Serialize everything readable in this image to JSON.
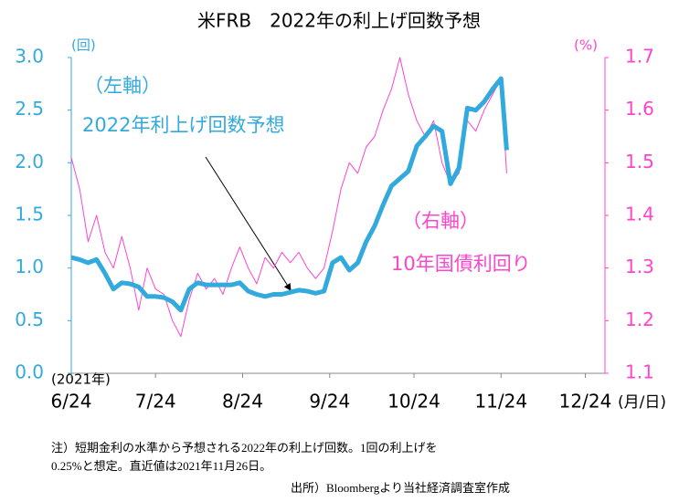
{
  "chart_data": {
    "type": "line",
    "title": "米FRB　2022年の利上げ回数予想",
    "y_label": "(回)",
    "y2_label": "(%)",
    "x_year_label": "(2021年)",
    "x_unit_label": "(月/日)",
    "annotations": [
      "（左軸）",
      "2022年利上げ回数予想",
      "（右軸）",
      "10年国債利回り"
    ],
    "notes": [
      "注）短期金利の水準から予想される2022年の利上げ回数。1回の利上げを",
      "0.25%と想定。直近値は2021年11月26日。"
    ],
    "source": "出所）Bloombergより当社経済調査室作成",
    "x": [
      "2021-06-24",
      "2021-06-27",
      "2021-06-30",
      "2021-07-03",
      "2021-07-06",
      "2021-07-09",
      "2021-07-12",
      "2021-07-15",
      "2021-07-18",
      "2021-07-21",
      "2021-07-24",
      "2021-07-27",
      "2021-07-30",
      "2021-08-02",
      "2021-08-05",
      "2021-08-08",
      "2021-08-11",
      "2021-08-14",
      "2021-08-17",
      "2021-08-20",
      "2021-08-23",
      "2021-08-26",
      "2021-08-29",
      "2021-09-01",
      "2021-09-04",
      "2021-09-07",
      "2021-09-10",
      "2021-09-13",
      "2021-09-16",
      "2021-09-19",
      "2021-09-22",
      "2021-09-25",
      "2021-09-28",
      "2021-10-01",
      "2021-10-04",
      "2021-10-07",
      "2021-10-10",
      "2021-10-13",
      "2021-10-16",
      "2021-10-19",
      "2021-10-22",
      "2021-10-25",
      "2021-10-28",
      "2021-10-31",
      "2021-11-03",
      "2021-11-06",
      "2021-11-09",
      "2021-11-12",
      "2021-11-15",
      "2021-11-18",
      "2021-11-21",
      "2021-11-24",
      "2021-11-26"
    ],
    "series": [
      {
        "name": "2022年利上げ回数予想",
        "color": "#33aadd",
        "axis": "y",
        "values": [
          1.1,
          1.08,
          1.05,
          1.08,
          0.95,
          0.8,
          0.86,
          0.85,
          0.82,
          0.73,
          0.73,
          0.72,
          0.68,
          0.6,
          0.8,
          0.86,
          0.84,
          0.84,
          0.84,
          0.84,
          0.86,
          0.78,
          0.75,
          0.73,
          0.75,
          0.75,
          0.77,
          0.79,
          0.78,
          0.76,
          0.78,
          1.05,
          1.1,
          0.98,
          1.05,
          1.25,
          1.4,
          1.6,
          1.78,
          1.85,
          1.92,
          2.16,
          2.25,
          2.35,
          2.3,
          1.8,
          1.95,
          2.52,
          2.5,
          2.58,
          2.7,
          2.8,
          2.12
        ]
      },
      {
        "name": "10年国債利回り",
        "color": "#ff44cc",
        "axis": "y2",
        "values": [
          1.51,
          1.45,
          1.35,
          1.4,
          1.33,
          1.3,
          1.36,
          1.3,
          1.22,
          1.3,
          1.26,
          1.25,
          1.2,
          1.17,
          1.24,
          1.29,
          1.26,
          1.28,
          1.25,
          1.3,
          1.34,
          1.3,
          1.27,
          1.32,
          1.3,
          1.33,
          1.31,
          1.33,
          1.3,
          1.28,
          1.3,
          1.37,
          1.45,
          1.5,
          1.48,
          1.53,
          1.55,
          1.6,
          1.64,
          1.7,
          1.63,
          1.58,
          1.55,
          1.58,
          1.5,
          1.46,
          1.48,
          1.58,
          1.56,
          1.6,
          1.63,
          1.66,
          1.48
        ]
      }
    ],
    "xlim": [
      "2021-06-24",
      "2021-12-31"
    ],
    "xticks": [
      {
        "value": "2021-06-24",
        "label": "6/24"
      },
      {
        "value": "2021-07-24",
        "label": "7/24"
      },
      {
        "value": "2021-08-24",
        "label": "8/24"
      },
      {
        "value": "2021-09-24",
        "label": "9/24"
      },
      {
        "value": "2021-10-24",
        "label": "10/24"
      },
      {
        "value": "2021-11-24",
        "label": "11/24"
      },
      {
        "value": "2021-12-24",
        "label": "12/24"
      }
    ],
    "ylim": [
      0,
      3
    ],
    "yticks": [
      {
        "value": 0,
        "label": "0.0"
      },
      0.5,
      {
        "value": 1,
        "label": "1.0"
      },
      1.5,
      {
        "value": 2,
        "label": "2.0"
      },
      2.5,
      {
        "value": 3,
        "label": "3.0"
      }
    ],
    "y2lim": [
      1.1,
      1.7
    ],
    "y2ticks": [
      1.1,
      1.2,
      1.3,
      1.4,
      1.5,
      1.6,
      1.7
    ],
    "grid": false
  }
}
